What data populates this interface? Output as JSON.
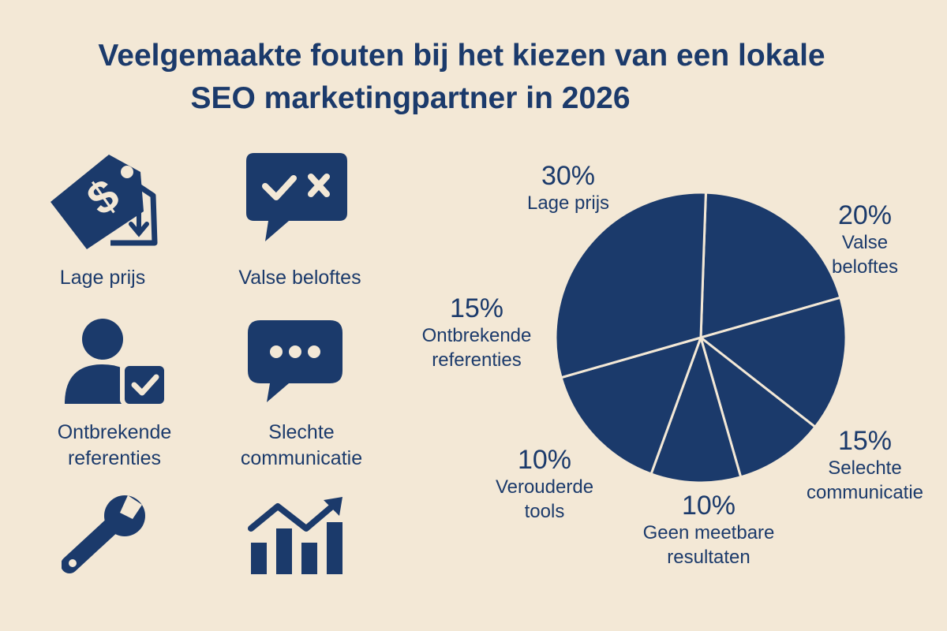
{
  "title": {
    "line1": "Veelgemaakte fouten bij het kiezen van een lokale",
    "line2": "SEO marketingpartner in 2026"
  },
  "icons": [
    {
      "icon": "price-tag-dollar-icon",
      "label": "Lage prijs"
    },
    {
      "icon": "speech-bubble-check-cross-icon",
      "label": "Valse beloftes"
    },
    {
      "icon": "user-check-icon",
      "label": "Ontbrekende referenties"
    },
    {
      "icon": "speech-bubble-dots-icon",
      "label": "Slechte communicatie"
    },
    {
      "icon": "wrench-icon",
      "label": ""
    },
    {
      "icon": "bar-chart-trend-icon",
      "label": ""
    }
  ],
  "colors": {
    "navy": "#1b3a6b",
    "background": "#f3e8d6",
    "pie_divider": "#f3e8d6"
  },
  "chart_data": {
    "type": "pie",
    "slices": [
      {
        "name": "Lage prijs",
        "value": 30,
        "label": "30%"
      },
      {
        "name": "Valse beloftes",
        "value": 20,
        "label": "20%"
      },
      {
        "name": "Selechte communicatie",
        "value": 15,
        "label": "15%"
      },
      {
        "name": "Geen meetbare resultaten",
        "value": 10,
        "label": "10%"
      },
      {
        "name": "Verouderde tools",
        "value": 10,
        "label": "10%"
      },
      {
        "name": "Ontbrekende referenties",
        "value": 15,
        "label": "15%"
      }
    ],
    "label_lines": {
      "Lage prijs": [
        "Lage prijs"
      ],
      "Valse beloftes": [
        "Valse",
        "beloftes"
      ],
      "Selechte communicatie": [
        "Selechte",
        "communicatie"
      ],
      "Geen meetbare resultaten": [
        "Geen meetbare",
        "resultaten"
      ],
      "Verouderde tools": [
        "Verouderde",
        "tools"
      ],
      "Ontbrekende referenties": [
        "Ontbrekende",
        "referenties"
      ]
    }
  }
}
